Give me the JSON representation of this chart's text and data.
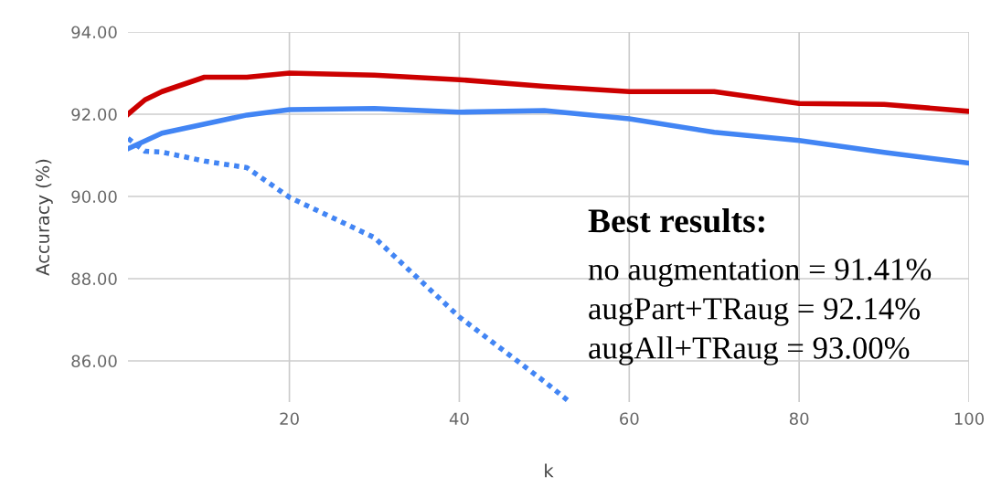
{
  "chart_data": {
    "type": "line",
    "xlabel": "k",
    "ylabel": "Accuracy (%)",
    "xlim": [
      1,
      100
    ],
    "ylim": [
      85,
      94
    ],
    "xticks": [
      20,
      40,
      60,
      80,
      100
    ],
    "yticks": [
      {
        "value": 86,
        "label": "86.00"
      },
      {
        "value": 88,
        "label": "88.00"
      },
      {
        "value": 90,
        "label": "90.00"
      },
      {
        "value": 92,
        "label": "92.00"
      },
      {
        "value": 94,
        "label": "94.00"
      }
    ],
    "grid": true,
    "legend": false,
    "series": [
      {
        "color": "#cc0000",
        "line_style": "solid",
        "x": [
          1,
          3,
          5,
          10,
          15,
          20,
          30,
          40,
          50,
          60,
          70,
          80,
          90,
          100
        ],
        "values": [
          92.0,
          92.35,
          92.55,
          92.9,
          92.9,
          93.0,
          92.95,
          92.84,
          92.68,
          92.55,
          92.55,
          92.26,
          92.24,
          92.07
        ]
      },
      {
        "color": "#4285f4",
        "line_style": "solid",
        "x": [
          1,
          5,
          15,
          20,
          30,
          40,
          50,
          60,
          70,
          80,
          90,
          100
        ],
        "values": [
          91.16,
          91.54,
          91.98,
          92.11,
          92.14,
          92.05,
          92.09,
          91.89,
          91.56,
          91.36,
          91.07,
          90.81
        ]
      },
      {
        "color": "#4285f4",
        "line_style": "dotted",
        "x": [
          1,
          3,
          5,
          10,
          15,
          20,
          30,
          40,
          50,
          53
        ],
        "values": [
          91.41,
          91.1,
          91.08,
          90.86,
          90.7,
          89.98,
          89.0,
          87.07,
          85.5,
          85.0
        ]
      }
    ],
    "annotations": [
      "Best results:",
      "no augmentation = 91.41%",
      "augPart+TRaug = 92.14%",
      "augAll+TRaug = 93.00%"
    ]
  }
}
